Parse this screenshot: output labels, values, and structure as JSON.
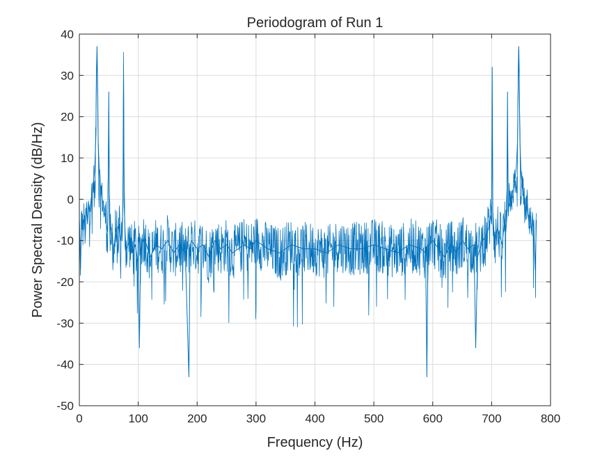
{
  "chart_data": {
    "type": "line",
    "title": "Periodogram of Run 1",
    "xlabel": "Frequency (Hz)",
    "ylabel": "Power Spectral Density (dB/Hz)",
    "xlim": [
      0,
      800
    ],
    "ylim": [
      -50,
      40
    ],
    "xticks": [
      0,
      100,
      200,
      300,
      400,
      500,
      600,
      700,
      800
    ],
    "yticks": [
      -50,
      -40,
      -30,
      -20,
      -10,
      0,
      10,
      20,
      30,
      40
    ],
    "grid": true,
    "line_color": "#0072BD",
    "series": [
      {
        "x": [
          0,
          2,
          4,
          6,
          8,
          10,
          12,
          14,
          16,
          18,
          20,
          22,
          24,
          26,
          28,
          29,
          30,
          31,
          32,
          34,
          36,
          38,
          40,
          42,
          44,
          46,
          48,
          49,
          50,
          51,
          52,
          54,
          56,
          58,
          60,
          62,
          64,
          66,
          68,
          70,
          72,
          74,
          75,
          76,
          78,
          80,
          85,
          90,
          95,
          100,
          102,
          104,
          110,
          120,
          130,
          140,
          150,
          160,
          170,
          180,
          186,
          188,
          190,
          200,
          210,
          220,
          230,
          240,
          250,
          260,
          270,
          280,
          290,
          300,
          320,
          340,
          360,
          380,
          400,
          420,
          440,
          460,
          480,
          500,
          520,
          540,
          560,
          580,
          588,
          590,
          592,
          600,
          610,
          620,
          630,
          640,
          650,
          660,
          670,
          673,
          676,
          680,
          685,
          690,
          695,
          698,
          700,
          701,
          702,
          704,
          706,
          710,
          714,
          718,
          722,
          724,
          726,
          727,
          728,
          730,
          732,
          734,
          736,
          738,
          740,
          742,
          744,
          745,
          746,
          747,
          748,
          750,
          752,
          754,
          756,
          758,
          760,
          762,
          764,
          766,
          768,
          770,
          772,
          774,
          776
        ],
        "y": [
          -5,
          -17,
          -3,
          -8,
          -4,
          -9,
          -2,
          -6,
          -1,
          -3,
          0,
          2,
          4,
          7,
          15,
          30,
          37,
          29,
          14,
          6,
          3,
          1,
          -1,
          -3,
          -4,
          -6,
          -8,
          5,
          26,
          -4,
          -9,
          -11,
          -8,
          -14,
          -10,
          -7,
          -9,
          -13,
          -6,
          -10,
          -8,
          -2,
          32,
          -1,
          -9,
          -12,
          -10,
          -13,
          -11,
          -16,
          -36,
          -12,
          -9,
          -14,
          -11,
          -12,
          -10,
          -13,
          -11,
          -13,
          -43,
          -12,
          -10,
          -12,
          -11,
          -14,
          -10,
          -12,
          -11,
          -13,
          -12,
          -11,
          -12,
          -10,
          -12,
          -13,
          -11,
          -12,
          -12,
          -13,
          -11,
          -12,
          -12,
          -11,
          -12,
          -13,
          -11,
          -12,
          -13,
          -43,
          -11,
          -10,
          -12,
          -14,
          -11,
          -13,
          -10,
          -12,
          -11,
          -36,
          -14,
          -12,
          -10,
          -9,
          -7,
          -4,
          -6,
          32,
          -3,
          -8,
          -10,
          -7,
          -9,
          -11,
          -5,
          -8,
          -4,
          26,
          -3,
          -1,
          -2,
          0,
          2,
          3,
          5,
          8,
          14,
          27,
          37,
          28,
          14,
          6,
          3,
          1,
          -2,
          -3,
          -1,
          -4,
          -6,
          -3,
          -8,
          -5,
          -9,
          -17,
          -5
        ]
      }
    ]
  }
}
